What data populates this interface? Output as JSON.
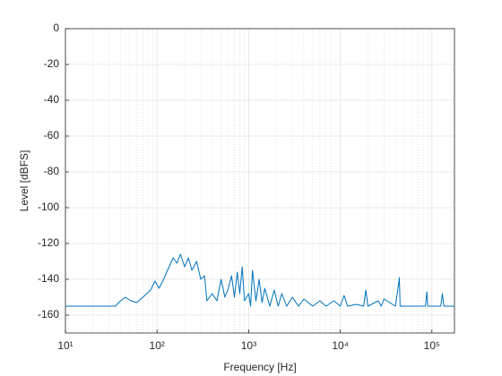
{
  "chart_data": {
    "type": "line",
    "xlabel": "Frequency [Hz]",
    "ylabel": "Level [dBFS]",
    "xscale": "log",
    "grid": true,
    "minor_grid": true,
    "xlim": [
      10,
      176400
    ],
    "ylim": [
      -170,
      0
    ],
    "xticks": [
      {
        "value": 10,
        "label": "10¹"
      },
      {
        "value": 100,
        "label": "10²"
      },
      {
        "value": 1000,
        "label": "10³"
      },
      {
        "value": 10000,
        "label": "10⁴"
      },
      {
        "value": 100000,
        "label": "10⁵"
      }
    ],
    "xminorticks": [
      20,
      30,
      40,
      50,
      60,
      70,
      80,
      90,
      200,
      300,
      400,
      500,
      600,
      700,
      800,
      900,
      2000,
      3000,
      4000,
      5000,
      6000,
      7000,
      8000,
      9000,
      20000,
      30000,
      40000,
      50000,
      60000,
      70000,
      80000,
      90000,
      200000,
      300000,
      400000,
      500000,
      600000,
      700000,
      800000,
      900000
    ],
    "yticks": [
      0,
      -20,
      -40,
      -60,
      -80,
      -100,
      -120,
      -140,
      -160
    ],
    "series": [
      {
        "color": "#0072bd",
        "x": [
          10,
          35,
          40,
          45,
          52,
          60,
          70,
          85,
          95,
          105,
          118,
          130,
          150,
          165,
          180,
          200,
          220,
          240,
          270,
          300,
          330,
          350,
          400,
          450,
          500,
          550,
          600,
          650,
          700,
          750,
          800,
          850,
          900,
          1000,
          1050,
          1100,
          1200,
          1300,
          1400,
          1500,
          1700,
          1900,
          2100,
          2300,
          2600,
          3000,
          3500,
          4000,
          5000,
          6000,
          7000,
          8500,
          10000,
          11000,
          12000,
          15000,
          18000,
          19000,
          20000,
          26000,
          28000,
          30000,
          40000,
          44000,
          44100,
          45000,
          85000,
          88000,
          90000,
          125000,
          130000,
          135000,
          176400
        ],
        "values": [
          -155,
          -155,
          -152,
          -150,
          -152,
          -153,
          -150,
          -146,
          -141,
          -145,
          -140,
          -135,
          -128,
          -131,
          -126,
          -133,
          -128,
          -135,
          -130,
          -140,
          -138,
          -152,
          -148,
          -152,
          -140,
          -150,
          -145,
          -138,
          -150,
          -136,
          -148,
          -133,
          -152,
          -148,
          -155,
          -135,
          -152,
          -140,
          -153,
          -145,
          -155,
          -146,
          -155,
          -148,
          -155,
          -150,
          -155,
          -151,
          -155,
          -152,
          -155,
          -152,
          -155,
          -149,
          -155,
          -154,
          -155,
          -146,
          -155,
          -152,
          -155,
          -151,
          -155,
          -140,
          -139,
          -155,
          -155,
          -147,
          -155,
          -155,
          -148,
          -155,
          -155
        ]
      }
    ]
  }
}
